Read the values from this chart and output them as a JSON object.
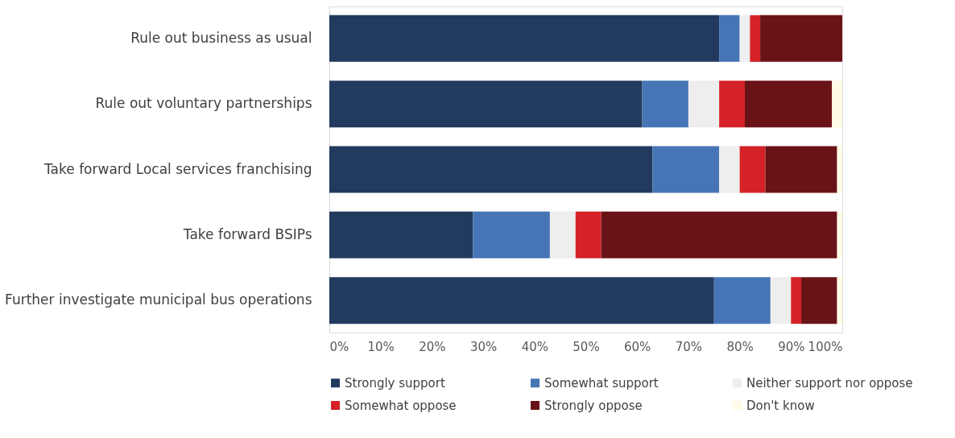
{
  "chart_data": {
    "type": "bar",
    "orientation": "horizontal",
    "stacked": true,
    "categories": [
      "Rule out business as usual",
      "Rule out voluntary partnerships",
      "Take forward Local services franchising",
      "Take forward BSIPs",
      "Further investigate municipal bus operations"
    ],
    "series": [
      {
        "name": "Strongly support",
        "color": "#223a5e",
        "values": [
          76,
          61,
          63,
          28,
          75
        ]
      },
      {
        "name": "Somewhat support",
        "color": "#4675b6",
        "values": [
          4,
          9,
          13,
          15,
          11
        ]
      },
      {
        "name": "Neither support nor oppose",
        "color": "#eeeeee",
        "values": [
          2,
          6,
          4,
          5,
          4
        ]
      },
      {
        "name": "Somewhat oppose",
        "color": "#d42228",
        "values": [
          2,
          5,
          5,
          5,
          2
        ]
      },
      {
        "name": "Strongly oppose",
        "color": "#6a1316",
        "values": [
          16,
          17,
          14,
          46,
          7
        ]
      },
      {
        "name": "Don't know",
        "color": "#fffbe6",
        "values": [
          0,
          2,
          1,
          1,
          1
        ]
      }
    ],
    "xlim": [
      0,
      100
    ],
    "xticks": [
      {
        "value": 0,
        "label": "0%"
      },
      {
        "value": 10,
        "label": "10%"
      },
      {
        "value": 20,
        "label": "20%"
      },
      {
        "value": 30,
        "label": "30%"
      },
      {
        "value": 40,
        "label": "40%"
      },
      {
        "value": 50,
        "label": "50%"
      },
      {
        "value": 60,
        "label": "60%"
      },
      {
        "value": 70,
        "label": "70%"
      },
      {
        "value": 80,
        "label": "80%"
      },
      {
        "value": 90,
        "label": "90%"
      },
      {
        "value": 100,
        "label": "100%"
      }
    ],
    "grid": false,
    "legend": "bottom"
  }
}
